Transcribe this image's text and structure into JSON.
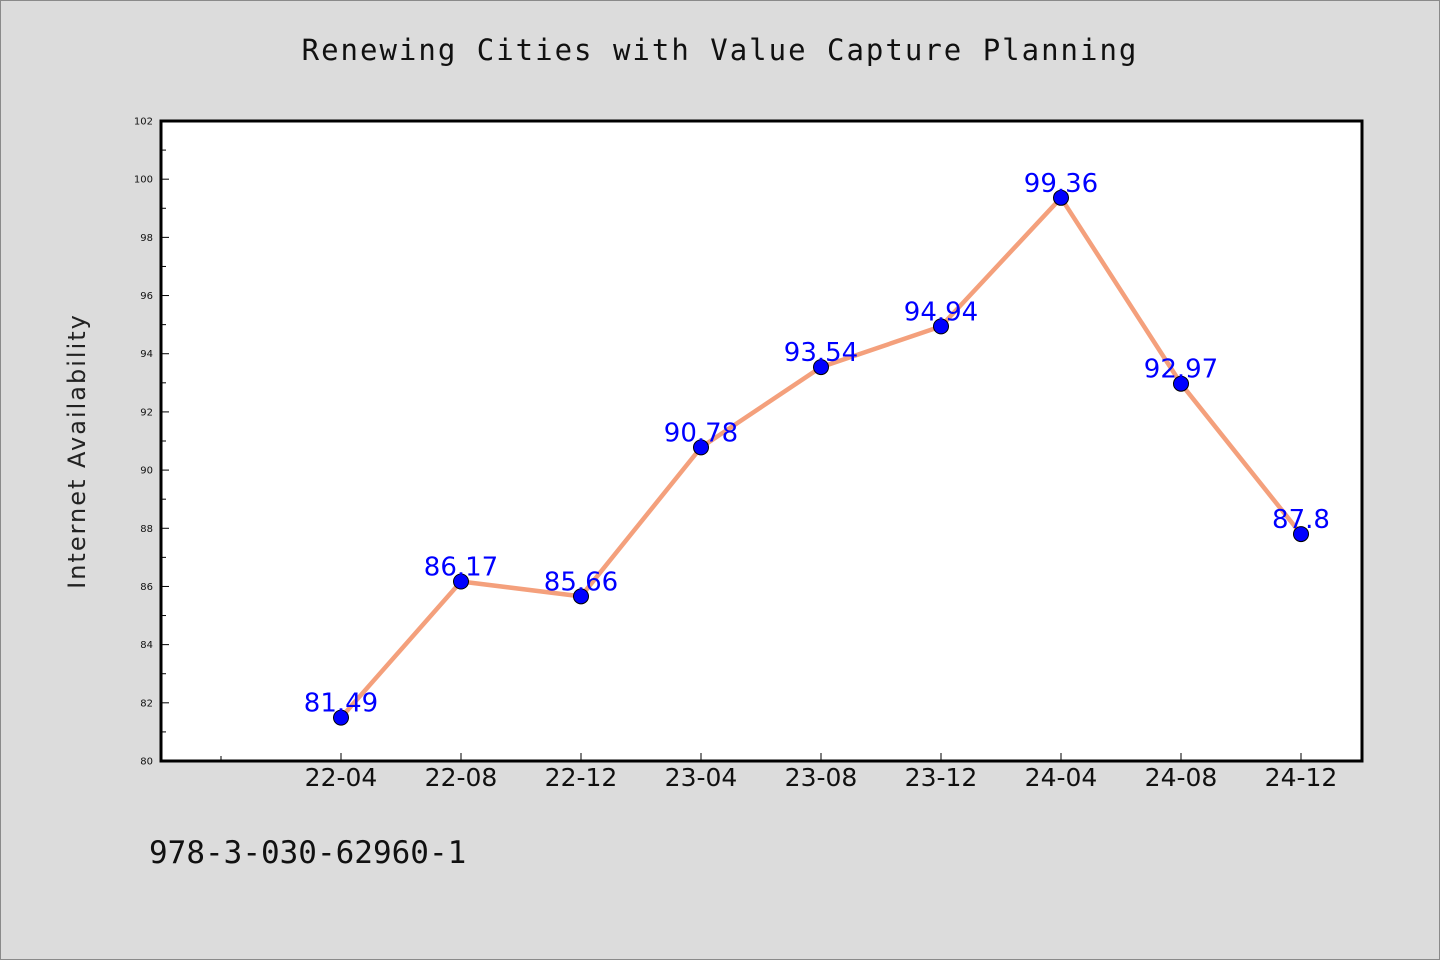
{
  "title": "Renewing Cities with Value Capture Planning",
  "footer_code": "978-3-030-62960-1",
  "colors": {
    "line": "#f4a07c",
    "marker": "#0000ff",
    "label": "#0000ff",
    "plot_bg": "#ffffff",
    "page_bg": "#dcdcdc"
  },
  "chart_data": {
    "type": "line",
    "title": "Renewing Cities with Value Capture Planning",
    "xlabel": "",
    "ylabel": "Internet Availability",
    "categories": [
      "22-04",
      "22-08",
      "22-12",
      "23-04",
      "23-08",
      "23-12",
      "24-04",
      "24-08",
      "24-12"
    ],
    "series": [
      {
        "values": [
          81.49,
          86.17,
          85.66,
          90.78,
          93.54,
          94.94,
          99.36,
          92.97,
          87.8
        ]
      }
    ],
    "data_labels": [
      "81.49",
      "86.17",
      "85.66",
      "90.78",
      "93.54",
      "94.94",
      "99.36",
      "92.97",
      "87.8"
    ],
    "ylim": [
      80,
      102
    ],
    "yticks": [
      80,
      82,
      84,
      86,
      88,
      90,
      92,
      94,
      96,
      98,
      100,
      102
    ],
    "grid": false,
    "legend": "none"
  }
}
